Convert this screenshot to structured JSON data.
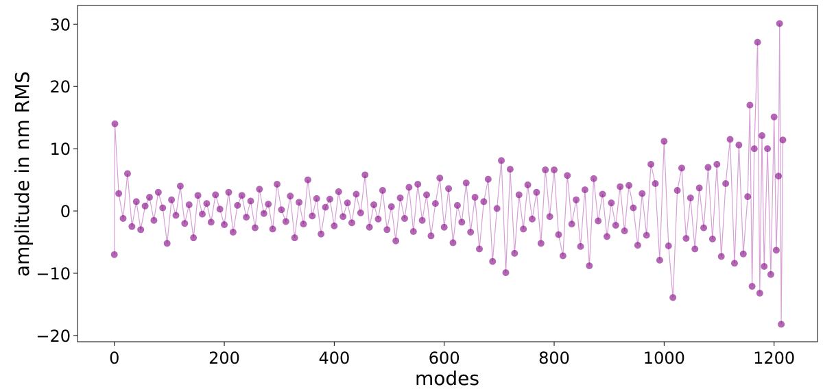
{
  "chart_data": {
    "type": "line",
    "x_label": "modes",
    "y_label": "amplitude in nm RMS",
    "color": "#800080",
    "line_color": "#cc88cc",
    "xlim": [
      -67,
      1279
    ],
    "ylim": [
      -21,
      33
    ],
    "xticks": [
      0,
      200,
      400,
      600,
      800,
      1000,
      1200
    ],
    "yticks": [
      {
        "value": -20,
        "label": "−20"
      },
      {
        "value": -10,
        "label": "−10"
      },
      0,
      10,
      20,
      30
    ],
    "x": [
      0,
      1,
      8,
      16,
      24,
      32,
      40,
      48,
      56,
      64,
      72,
      80,
      88,
      96,
      104,
      112,
      120,
      128,
      136,
      144,
      152,
      160,
      168,
      176,
      184,
      192,
      200,
      208,
      216,
      224,
      232,
      240,
      248,
      256,
      264,
      272,
      280,
      288,
      296,
      304,
      312,
      320,
      328,
      336,
      344,
      352,
      360,
      368,
      376,
      384,
      392,
      400,
      408,
      416,
      424,
      432,
      440,
      448,
      456,
      464,
      472,
      480,
      488,
      496,
      504,
      512,
      520,
      528,
      536,
      544,
      552,
      560,
      568,
      576,
      584,
      592,
      600,
      608,
      616,
      624,
      632,
      640,
      648,
      656,
      664,
      672,
      680,
      688,
      696,
      704,
      712,
      720,
      728,
      736,
      744,
      752,
      760,
      768,
      776,
      784,
      792,
      800,
      808,
      816,
      824,
      832,
      840,
      848,
      856,
      864,
      872,
      880,
      888,
      896,
      904,
      912,
      920,
      928,
      936,
      944,
      952,
      960,
      968,
      976,
      984,
      992,
      1000,
      1008,
      1016,
      1024,
      1032,
      1040,
      1048,
      1056,
      1064,
      1072,
      1080,
      1088,
      1096,
      1104,
      1112,
      1120,
      1128,
      1136,
      1144,
      1152,
      1156,
      1160,
      1164,
      1170,
      1174,
      1178,
      1182,
      1188,
      1194,
      1200,
      1204,
      1208,
      1210,
      1213,
      1216
    ],
    "values": [
      -7,
      14,
      2.8,
      -1.2,
      6,
      -2.5,
      1.5,
      -3,
      0.8,
      2.2,
      -1.5,
      3,
      0.5,
      -5.2,
      1.8,
      -0.7,
      4,
      -2,
      1,
      -4.3,
      2.5,
      -0.5,
      1.2,
      -1.8,
      2.6,
      0.3,
      -2.2,
      3,
      -3.4,
      0.9,
      2.5,
      -1,
      1.6,
      -2.7,
      3.5,
      -0.4,
      1.1,
      -2.9,
      4.3,
      0.2,
      -1.7,
      2.4,
      -4.3,
      1.4,
      -2.1,
      5,
      -0.8,
      2,
      -3.7,
      0.6,
      1.9,
      -2.4,
      3.1,
      -0.9,
      1.3,
      -1.9,
      2.7,
      -0.3,
      5.8,
      -2.6,
      1,
      -1.3,
      3.3,
      -3,
      0.7,
      -4.8,
      2.1,
      -1.2,
      3.8,
      -3.3,
      4.3,
      -1.5,
      2.6,
      -4,
      1.2,
      5.3,
      -2.6,
      3.6,
      -5.1,
      0.9,
      -1.8,
      4.5,
      -3.4,
      2.2,
      -6.1,
      1.5,
      5.1,
      -8.1,
      0.4,
      8.1,
      -9.9,
      6.7,
      -6.8,
      2.6,
      -2.9,
      4.2,
      -1.3,
      3,
      -5.2,
      6.6,
      -0.9,
      6.6,
      -3.8,
      -7.2,
      5.7,
      -2.1,
      1.8,
      -5.7,
      3.4,
      -8.8,
      5.2,
      -1.6,
      2.7,
      -4.1,
      1.3,
      -2.3,
      3.9,
      -3.2,
      4.1,
      0.5,
      -5.5,
      2.8,
      -3.9,
      7.5,
      4.4,
      -7.9,
      11.2,
      -5.6,
      -13.9,
      3.3,
      6.9,
      -4.4,
      2.1,
      -6.1,
      3.7,
      -2.7,
      7,
      -4.5,
      7.5,
      -7.3,
      4.4,
      11.5,
      -8.4,
      10.6,
      -6.9,
      2.3,
      17,
      -12.1,
      10,
      27.1,
      -13.2,
      12.1,
      -8.9,
      10,
      -10.2,
      15.1,
      -6.3,
      5.6,
      30.1,
      -18.2,
      11.4
    ]
  }
}
